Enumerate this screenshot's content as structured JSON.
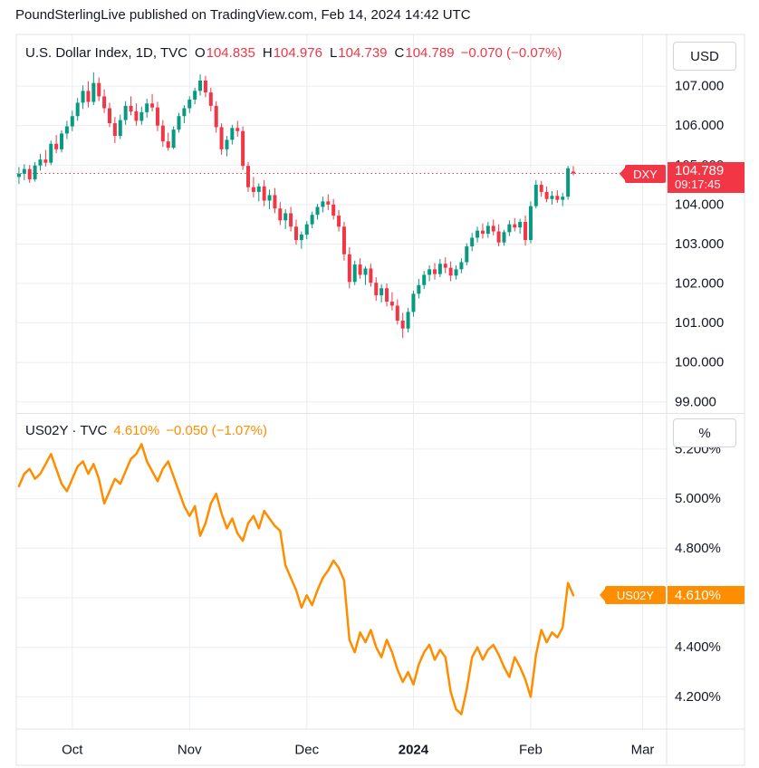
{
  "attribution": "PoundSterlingLive published on TradingView.com, Feb 14, 2024 14:42 UTC",
  "colors": {
    "up": "#089981",
    "down": "#f23645",
    "orange": "#ff8d00",
    "text": "#131722",
    "grid": "#e9edf2",
    "separator": "#e0e3eb"
  },
  "panes": {
    "dxy": {
      "legend_title": "U.S. Dollar Index, 1D, TVC",
      "ohlc": {
        "o_label": "O",
        "o": "104.835",
        "h_label": "H",
        "h": "104.976",
        "l_label": "L",
        "l": "104.739",
        "c_label": "C",
        "c": "104.789",
        "change": "−0.070 (−0.07%)"
      },
      "unit": "USD",
      "tag": "DXY",
      "price_label": "104.789",
      "countdown": "09:17:45"
    },
    "us02y": {
      "legend_title": "US02Y · TVC",
      "value": "4.610%",
      "change": "−0.050 (−1.07%)",
      "unit": "%",
      "tag": "US02Y",
      "price_label": "4.610%"
    }
  },
  "time_axis": {
    "total_slots": 122,
    "ticks": [
      {
        "label": "Oct",
        "index": 10,
        "bold": false
      },
      {
        "label": "Nov",
        "index": 32,
        "bold": false
      },
      {
        "label": "Dec",
        "index": 54,
        "bold": false
      },
      {
        "label": "2024",
        "index": 74,
        "bold": true
      },
      {
        "label": "Feb",
        "index": 96,
        "bold": false
      },
      {
        "label": "Mar",
        "index": 117,
        "bold": false
      }
    ]
  },
  "chart_data": [
    {
      "type": "candlestick",
      "title": "U.S. Dollar Index, 1D, TVC",
      "ylabel": "USD",
      "ylim": [
        98.72,
        108.31
      ],
      "y_ticks": [
        99,
        100,
        101,
        102,
        103,
        104,
        105,
        106,
        107
      ],
      "grid": true,
      "last_close": 104.789,
      "ohlc": [
        [
          104.7,
          104.95,
          104.52,
          104.78
        ],
        [
          104.78,
          105.02,
          104.62,
          104.9
        ],
        [
          104.9,
          105.0,
          104.55,
          104.64
        ],
        [
          104.64,
          105.08,
          104.58,
          104.99
        ],
        [
          104.99,
          105.28,
          104.86,
          105.14
        ],
        [
          105.14,
          105.38,
          104.96,
          105.06
        ],
        [
          105.06,
          105.62,
          105.0,
          105.54
        ],
        [
          105.54,
          105.76,
          105.3,
          105.4
        ],
        [
          105.4,
          105.88,
          105.32,
          105.8
        ],
        [
          105.8,
          106.12,
          105.66,
          105.98
        ],
        [
          105.98,
          106.38,
          105.86,
          106.24
        ],
        [
          106.24,
          106.7,
          106.12,
          106.58
        ],
        [
          106.58,
          107.02,
          106.42,
          106.88
        ],
        [
          106.88,
          107.12,
          106.46,
          106.6
        ],
        [
          106.6,
          107.35,
          106.52,
          107.08
        ],
        [
          107.08,
          107.22,
          106.62,
          106.74
        ],
        [
          106.74,
          106.92,
          106.32,
          106.44
        ],
        [
          106.44,
          106.58,
          105.96,
          106.06
        ],
        [
          106.06,
          106.22,
          105.56,
          105.74
        ],
        [
          105.74,
          106.28,
          105.66,
          106.14
        ],
        [
          106.14,
          106.62,
          106.02,
          106.5
        ],
        [
          106.5,
          106.74,
          106.26,
          106.36
        ],
        [
          106.36,
          106.56,
          106.0,
          106.12
        ],
        [
          106.12,
          106.48,
          106.02,
          106.34
        ],
        [
          106.34,
          106.68,
          106.2,
          106.56
        ],
        [
          106.56,
          106.8,
          106.36,
          106.46
        ],
        [
          106.46,
          106.6,
          105.86,
          106.0
        ],
        [
          106.0,
          106.14,
          105.46,
          105.6
        ],
        [
          105.6,
          105.82,
          105.36,
          105.44
        ],
        [
          105.44,
          105.98,
          105.4,
          105.9
        ],
        [
          105.9,
          106.32,
          105.82,
          106.24
        ],
        [
          106.24,
          106.52,
          106.06,
          106.44
        ],
        [
          106.44,
          106.74,
          106.32,
          106.66
        ],
        [
          106.66,
          106.96,
          106.54,
          106.88
        ],
        [
          106.88,
          107.3,
          106.76,
          107.14
        ],
        [
          107.14,
          107.26,
          106.72,
          106.84
        ],
        [
          106.84,
          106.96,
          106.36,
          106.5
        ],
        [
          106.5,
          106.62,
          105.82,
          105.96
        ],
        [
          105.96,
          106.06,
          105.26,
          105.4
        ],
        [
          105.4,
          105.74,
          105.22,
          105.64
        ],
        [
          105.64,
          106.02,
          105.52,
          105.94
        ],
        [
          105.94,
          106.12,
          105.72,
          105.86
        ],
        [
          105.86,
          105.98,
          104.88,
          104.98
        ],
        [
          104.98,
          105.08,
          104.32,
          104.44
        ],
        [
          104.44,
          104.7,
          104.18,
          104.32
        ],
        [
          104.32,
          104.54,
          104.08,
          104.46
        ],
        [
          104.46,
          104.62,
          103.96,
          104.1
        ],
        [
          104.1,
          104.38,
          103.88,
          104.24
        ],
        [
          104.24,
          104.42,
          103.78,
          103.9
        ],
        [
          103.9,
          104.06,
          103.48,
          103.6
        ],
        [
          103.6,
          103.88,
          103.38,
          103.78
        ],
        [
          103.78,
          103.94,
          103.32,
          103.44
        ],
        [
          103.44,
          103.62,
          102.98,
          103.1
        ],
        [
          103.1,
          103.32,
          102.88,
          103.24
        ],
        [
          103.24,
          103.58,
          103.12,
          103.5
        ],
        [
          103.5,
          103.82,
          103.4,
          103.74
        ],
        [
          103.74,
          104.02,
          103.62,
          103.94
        ],
        [
          103.94,
          104.2,
          103.8,
          104.08
        ],
        [
          104.08,
          104.26,
          103.86,
          104.0
        ],
        [
          104.0,
          104.14,
          103.62,
          103.72
        ],
        [
          103.72,
          103.86,
          103.32,
          103.44
        ],
        [
          103.44,
          103.56,
          102.58,
          102.74
        ],
        [
          102.74,
          102.92,
          101.88,
          102.04
        ],
        [
          102.04,
          102.58,
          101.96,
          102.48
        ],
        [
          102.48,
          102.64,
          102.12,
          102.22
        ],
        [
          102.22,
          102.44,
          101.96,
          102.38
        ],
        [
          102.38,
          102.5,
          101.92,
          102.02
        ],
        [
          102.02,
          102.16,
          101.56,
          101.7
        ],
        [
          101.7,
          101.98,
          101.52,
          101.88
        ],
        [
          101.88,
          102.0,
          101.42,
          101.54
        ],
        [
          101.54,
          101.78,
          101.32,
          101.44
        ],
        [
          101.44,
          101.6,
          100.96,
          101.06
        ],
        [
          101.06,
          101.26,
          100.62,
          100.86
        ],
        [
          100.86,
          101.38,
          100.76,
          101.28
        ],
        [
          101.28,
          101.82,
          101.16,
          101.74
        ],
        [
          101.74,
          102.12,
          101.62,
          101.96
        ],
        [
          101.96,
          102.32,
          101.86,
          102.22
        ],
        [
          102.22,
          102.46,
          102.06,
          102.36
        ],
        [
          102.36,
          102.52,
          102.1,
          102.24
        ],
        [
          102.24,
          102.62,
          102.16,
          102.5
        ],
        [
          102.5,
          102.66,
          102.26,
          102.4
        ],
        [
          102.4,
          102.56,
          102.06,
          102.2
        ],
        [
          102.2,
          102.46,
          102.1,
          102.36
        ],
        [
          102.36,
          102.64,
          102.26,
          102.54
        ],
        [
          102.54,
          103.02,
          102.46,
          102.94
        ],
        [
          102.94,
          103.28,
          102.82,
          103.16
        ],
        [
          103.16,
          103.44,
          103.04,
          103.34
        ],
        [
          103.34,
          103.52,
          103.14,
          103.26
        ],
        [
          103.26,
          103.56,
          103.16,
          103.46
        ],
        [
          103.46,
          103.62,
          103.22,
          103.32
        ],
        [
          103.32,
          103.5,
          102.94,
          103.04
        ],
        [
          103.04,
          103.36,
          102.96,
          103.3
        ],
        [
          103.3,
          103.6,
          103.2,
          103.5
        ],
        [
          103.5,
          103.66,
          103.32,
          103.42
        ],
        [
          103.42,
          103.64,
          103.26,
          103.56
        ],
        [
          103.56,
          103.72,
          102.96,
          103.1
        ],
        [
          103.1,
          104.08,
          103.02,
          103.96
        ],
        [
          103.96,
          104.62,
          103.9,
          104.5
        ],
        [
          104.5,
          104.6,
          104.2,
          104.32
        ],
        [
          104.32,
          104.46,
          104.06,
          104.14
        ],
        [
          104.14,
          104.34,
          104.0,
          104.22
        ],
        [
          104.22,
          104.36,
          104.04,
          104.12
        ],
        [
          104.12,
          104.3,
          103.96,
          104.2
        ],
        [
          104.2,
          104.98,
          104.12,
          104.92
        ],
        [
          104.835,
          104.976,
          104.739,
          104.789
        ]
      ]
    },
    {
      "type": "line",
      "title": "US02Y · TVC",
      "ylabel": "%",
      "ylim": [
        4.07,
        5.342
      ],
      "y_ticks": [
        4.2,
        4.4,
        4.6,
        4.8,
        5.0,
        5.2
      ],
      "grid": true,
      "last_value": 4.61,
      "values": [
        5.05,
        5.1,
        5.12,
        5.08,
        5.1,
        5.14,
        5.18,
        5.12,
        5.06,
        5.03,
        5.08,
        5.13,
        5.15,
        5.1,
        5.14,
        5.08,
        4.98,
        5.03,
        5.08,
        5.06,
        5.11,
        5.16,
        5.18,
        5.22,
        5.15,
        5.11,
        5.07,
        5.12,
        5.15,
        5.09,
        5.03,
        4.97,
        4.93,
        4.97,
        4.85,
        4.9,
        4.98,
        5.02,
        4.94,
        4.88,
        4.92,
        4.86,
        4.83,
        4.9,
        4.93,
        4.88,
        4.95,
        4.92,
        4.89,
        4.87,
        4.73,
        4.68,
        4.63,
        4.56,
        4.61,
        4.57,
        4.63,
        4.68,
        4.71,
        4.75,
        4.72,
        4.67,
        4.43,
        4.38,
        4.46,
        4.42,
        4.47,
        4.4,
        4.36,
        4.43,
        4.38,
        4.31,
        4.26,
        4.3,
        4.25,
        4.33,
        4.38,
        4.41,
        4.35,
        4.39,
        4.36,
        4.22,
        4.15,
        4.13,
        4.23,
        4.36,
        4.4,
        4.35,
        4.39,
        4.41,
        4.37,
        4.32,
        4.28,
        4.36,
        4.32,
        4.27,
        4.2,
        4.37,
        4.47,
        4.42,
        4.46,
        4.44,
        4.48,
        4.66,
        4.61
      ]
    }
  ]
}
